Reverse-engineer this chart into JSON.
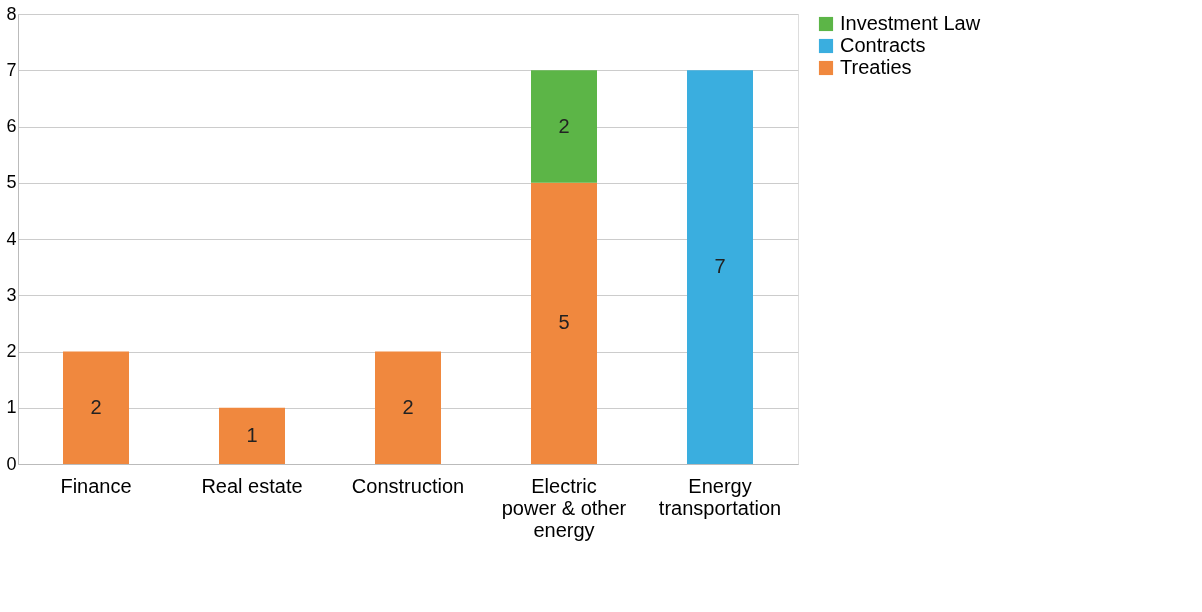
{
  "chart_data": {
    "type": "bar",
    "stacked": true,
    "categories": [
      "Finance",
      "Real estate",
      "Construction",
      "Electric power & other energy",
      "Energy transportation"
    ],
    "series": [
      {
        "name": "Treaties",
        "color": "#f0883e",
        "values": [
          2,
          1,
          2,
          5,
          null
        ]
      },
      {
        "name": "Contracts",
        "color": "#3aaedf",
        "values": [
          null,
          null,
          null,
          null,
          7
        ]
      },
      {
        "name": "Investment Law",
        "color": "#5cb547",
        "values": [
          null,
          null,
          null,
          2,
          null
        ]
      }
    ],
    "ylim": [
      0,
      8
    ],
    "yticks": [
      0,
      1,
      2,
      3,
      4,
      5,
      6,
      7,
      8
    ],
    "grid": "y",
    "legend": "right",
    "data_labels": true
  }
}
